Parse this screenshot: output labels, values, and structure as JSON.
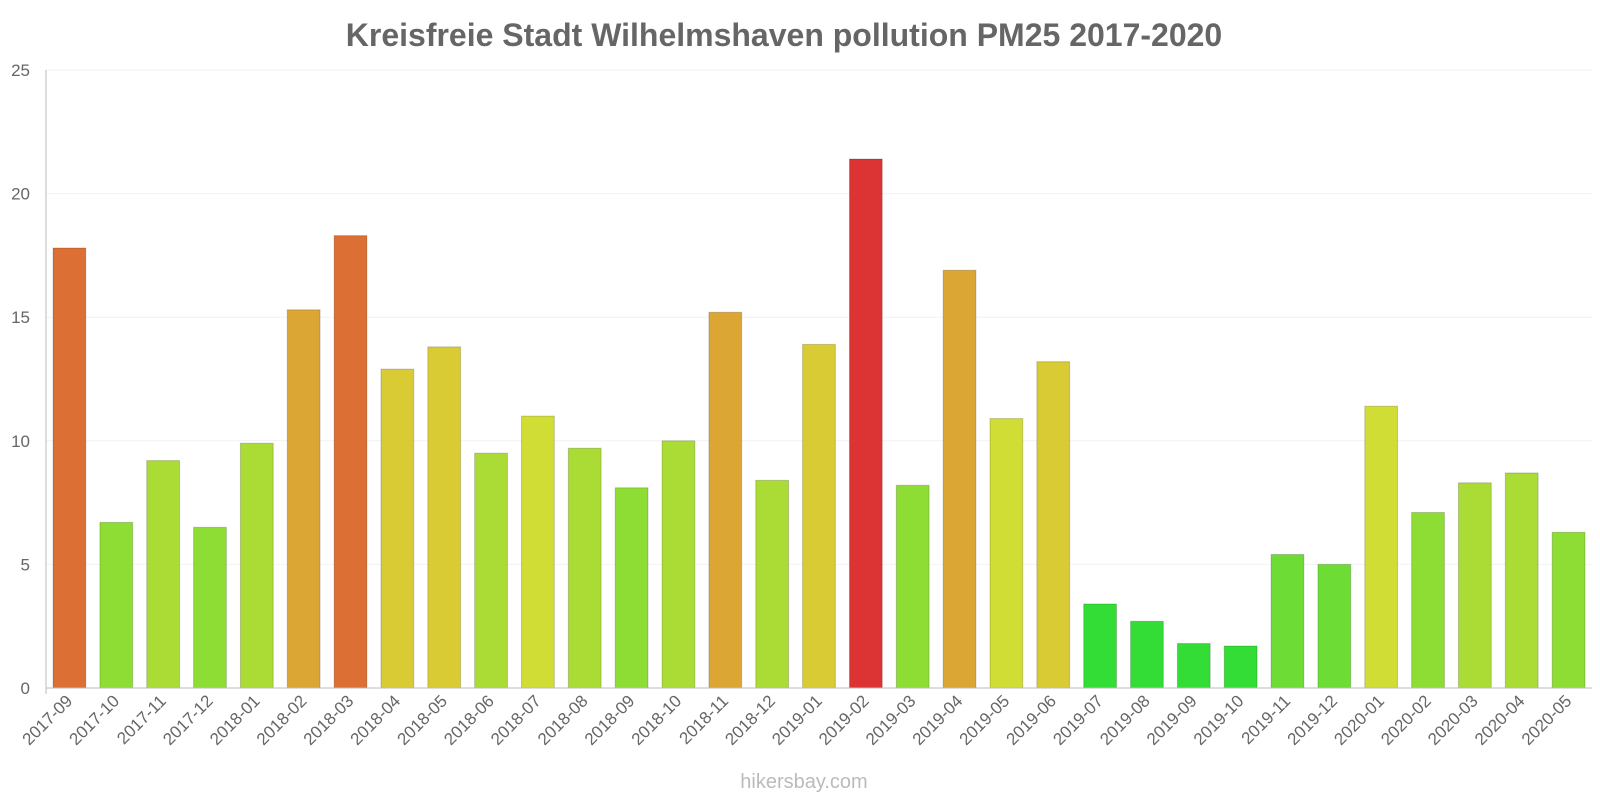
{
  "watermark": "hikersbay.com",
  "chart_data": {
    "type": "bar",
    "title": "Kreisfreie Stadt Wilhelmshaven pollution PM25 2017-2020",
    "xlabel": "",
    "ylabel": "",
    "ylim": [
      0,
      25
    ],
    "yticks": [
      "0",
      "5",
      "10",
      "15",
      "20",
      "25"
    ],
    "grid": true,
    "categories": [
      "2017-09",
      "2017-10",
      "2017-11",
      "2017-12",
      "2018-01",
      "2018-02",
      "2018-03",
      "2018-04",
      "2018-05",
      "2018-06",
      "2018-07",
      "2018-08",
      "2018-09",
      "2018-10",
      "2018-11",
      "2018-12",
      "2019-01",
      "2019-02",
      "2019-03",
      "2019-04",
      "2019-05",
      "2019-06",
      "2019-07",
      "2019-08",
      "2019-09",
      "2019-10",
      "2019-11",
      "2019-12",
      "2020-01",
      "2020-02",
      "2020-03",
      "2020-04",
      "2020-05"
    ],
    "values": [
      17.8,
      6.7,
      9.2,
      6.5,
      9.9,
      15.3,
      18.3,
      12.9,
      13.8,
      9.5,
      11.0,
      9.7,
      8.1,
      10.0,
      15.2,
      8.4,
      13.9,
      21.4,
      8.2,
      16.9,
      10.9,
      13.2,
      3.4,
      2.7,
      1.8,
      1.7,
      5.4,
      5.0,
      11.4,
      7.1,
      8.3,
      8.7,
      6.3
    ],
    "colors": [
      "#dc6f34",
      "#8ddd35",
      "#abdb35",
      "#8ddd35",
      "#abdb35",
      "#dca634",
      "#dc6f34",
      "#d9cb33",
      "#d9cb33",
      "#abdb35",
      "#d0dd35",
      "#abdb35",
      "#8ddd35",
      "#abdb35",
      "#dca634",
      "#abdb35",
      "#d9cb33",
      "#dc3434",
      "#8ddd35",
      "#dca634",
      "#d0dd35",
      "#d9cb33",
      "#33dd35",
      "#33dd35",
      "#33dd35",
      "#33dd35",
      "#6ddd35",
      "#6ddd35",
      "#d0dd35",
      "#8ddd35",
      "#abdb35",
      "#abdb35",
      "#8ddd35"
    ]
  }
}
